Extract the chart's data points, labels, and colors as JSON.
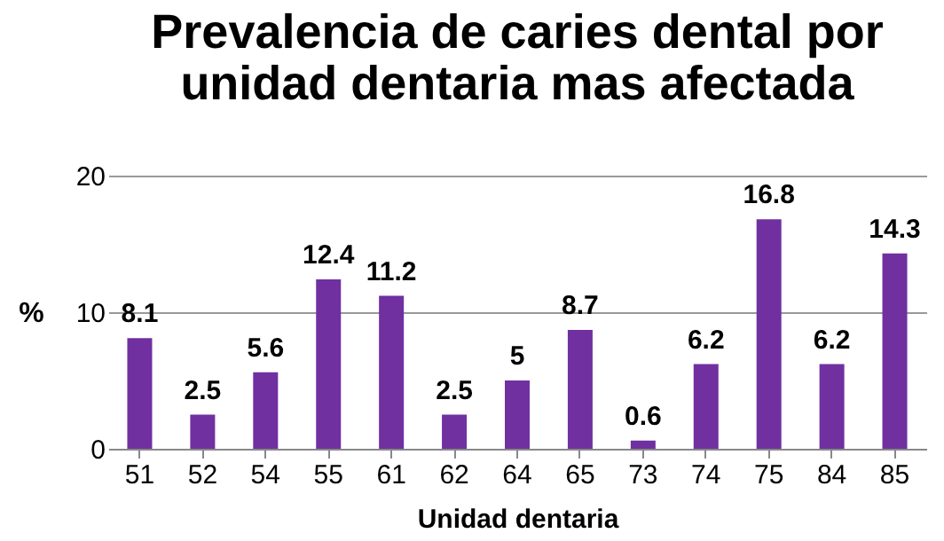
{
  "chart_data": {
    "type": "bar",
    "title": "Prevalencia de caries dental por unidad dentaria mas afectada",
    "xlabel": "Unidad dentaria",
    "ylabel": "%",
    "categories": [
      "51",
      "52",
      "54",
      "55",
      "61",
      "62",
      "64",
      "65",
      "73",
      "74",
      "75",
      "84",
      "85"
    ],
    "values": [
      8.1,
      2.5,
      5.6,
      12.4,
      11.2,
      2.5,
      5,
      8.7,
      0.6,
      6.2,
      16.8,
      6.2,
      14.3
    ],
    "color": "#7030a0",
    "ylim": [
      0,
      20
    ],
    "yticks": [
      0,
      10,
      20
    ],
    "grid": "y",
    "data_labels": true
  }
}
